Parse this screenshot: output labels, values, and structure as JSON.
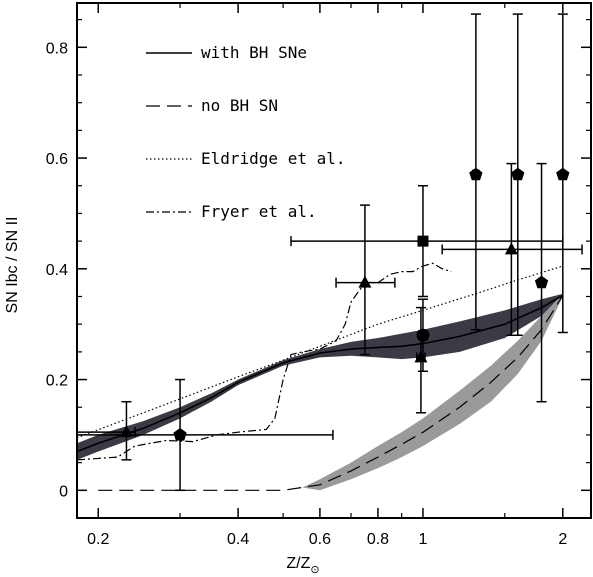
{
  "chart_data": {
    "type": "scatter",
    "xscale": "log",
    "xlim": [
      0.18,
      2.3
    ],
    "ylim": [
      -0.05,
      0.88
    ],
    "xlabel": "Z/Z",
    "xlabel_sub": "⊙",
    "ylabel": "SN Ibc / SN II",
    "x_ticks": [
      {
        "v": 0.2,
        "label": "0.2"
      },
      {
        "v": 0.4,
        "label": "0.4"
      },
      {
        "v": 0.6,
        "label": "0.6"
      },
      {
        "v": 0.8,
        "label": "0.8"
      },
      {
        "v": 1.0,
        "label": "1"
      },
      {
        "v": 2.0,
        "label": "2"
      }
    ],
    "x_minor_ticks": [
      0.3,
      0.5,
      0.7,
      0.9,
      1.5
    ],
    "y_ticks": [
      {
        "v": 0,
        "label": "0"
      },
      {
        "v": 0.2,
        "label": "0.2"
      },
      {
        "v": 0.4,
        "label": "0.4"
      },
      {
        "v": 0.6,
        "label": "0.6"
      },
      {
        "v": 0.8,
        "label": "0.8"
      }
    ],
    "y_minor_step": 0.05,
    "legend_position": "top-left",
    "legend": [
      {
        "label": "with BH SNe",
        "style": "solid"
      },
      {
        "label": "no BH SN",
        "style": "long-dash"
      },
      {
        "label": "Eldridge et al.",
        "style": "dotted"
      },
      {
        "label": "Fryer et al.",
        "style": "dash-dot"
      }
    ],
    "bands": [
      {
        "name": "with BH SNe",
        "fill": "#3b3b46",
        "upper": [
          [
            0.18,
            0.085
          ],
          [
            0.2,
            0.1
          ],
          [
            0.25,
            0.125
          ],
          [
            0.3,
            0.15
          ],
          [
            0.35,
            0.175
          ],
          [
            0.4,
            0.2
          ],
          [
            0.5,
            0.235
          ],
          [
            0.6,
            0.255
          ],
          [
            0.7,
            0.268
          ],
          [
            0.8,
            0.275
          ],
          [
            0.9,
            0.283
          ],
          [
            1.0,
            0.29
          ],
          [
            1.2,
            0.305
          ],
          [
            1.5,
            0.325
          ],
          [
            1.8,
            0.345
          ],
          [
            2.0,
            0.355
          ]
        ],
        "lower": [
          [
            0.18,
            0.055
          ],
          [
            0.2,
            0.07
          ],
          [
            0.25,
            0.1
          ],
          [
            0.3,
            0.13
          ],
          [
            0.35,
            0.16
          ],
          [
            0.4,
            0.19
          ],
          [
            0.5,
            0.225
          ],
          [
            0.6,
            0.24
          ],
          [
            0.7,
            0.243
          ],
          [
            0.8,
            0.24
          ],
          [
            0.9,
            0.237
          ],
          [
            1.0,
            0.24
          ],
          [
            1.2,
            0.25
          ],
          [
            1.5,
            0.275
          ],
          [
            1.8,
            0.315
          ],
          [
            2.0,
            0.35
          ]
        ]
      },
      {
        "name": "no BH SN",
        "fill": "#9a9a9a",
        "upper": [
          [
            0.55,
            0.005
          ],
          [
            0.6,
            0.02
          ],
          [
            0.7,
            0.05
          ],
          [
            0.8,
            0.08
          ],
          [
            0.9,
            0.105
          ],
          [
            1.0,
            0.13
          ],
          [
            1.2,
            0.18
          ],
          [
            1.4,
            0.225
          ],
          [
            1.6,
            0.27
          ],
          [
            1.8,
            0.315
          ],
          [
            2.0,
            0.355
          ]
        ],
        "lower": [
          [
            0.6,
            0.0
          ],
          [
            0.7,
            0.02
          ],
          [
            0.8,
            0.04
          ],
          [
            0.9,
            0.06
          ],
          [
            1.0,
            0.08
          ],
          [
            1.2,
            0.12
          ],
          [
            1.4,
            0.16
          ],
          [
            1.6,
            0.21
          ],
          [
            1.8,
            0.27
          ],
          [
            2.0,
            0.35
          ]
        ]
      }
    ],
    "series": [
      {
        "name": "with BH SNe",
        "style": "solid",
        "points": [
          [
            0.18,
            0.07
          ],
          [
            0.2,
            0.085
          ],
          [
            0.25,
            0.112
          ],
          [
            0.3,
            0.14
          ],
          [
            0.35,
            0.167
          ],
          [
            0.4,
            0.195
          ],
          [
            0.5,
            0.23
          ],
          [
            0.6,
            0.248
          ],
          [
            0.7,
            0.255
          ],
          [
            0.8,
            0.258
          ],
          [
            0.9,
            0.26
          ],
          [
            1.0,
            0.265
          ],
          [
            1.2,
            0.278
          ],
          [
            1.5,
            0.3
          ],
          [
            1.8,
            0.33
          ],
          [
            2.0,
            0.352
          ]
        ]
      },
      {
        "name": "no BH SN",
        "style": "long-dash",
        "points": [
          [
            0.2,
            0.0
          ],
          [
            0.5,
            0.0
          ],
          [
            0.6,
            0.01
          ],
          [
            0.7,
            0.035
          ],
          [
            0.8,
            0.06
          ],
          [
            0.9,
            0.083
          ],
          [
            1.0,
            0.105
          ],
          [
            1.2,
            0.15
          ],
          [
            1.4,
            0.195
          ],
          [
            1.6,
            0.24
          ],
          [
            1.8,
            0.29
          ],
          [
            2.0,
            0.352
          ]
        ]
      },
      {
        "name": "Eldridge et al.",
        "style": "dotted",
        "points": [
          [
            0.18,
            0.095
          ],
          [
            0.25,
            0.14
          ],
          [
            0.3,
            0.165
          ],
          [
            0.4,
            0.205
          ],
          [
            0.5,
            0.235
          ],
          [
            0.6,
            0.26
          ],
          [
            0.8,
            0.3
          ],
          [
            1.0,
            0.325
          ],
          [
            1.3,
            0.355
          ],
          [
            1.6,
            0.38
          ],
          [
            2.0,
            0.405
          ]
        ]
      },
      {
        "name": "Fryer et al.",
        "style": "dash-dot",
        "points": [
          [
            0.18,
            0.055
          ],
          [
            0.22,
            0.06
          ],
          [
            0.24,
            0.08
          ],
          [
            0.28,
            0.09
          ],
          [
            0.32,
            0.088
          ],
          [
            0.36,
            0.1
          ],
          [
            0.4,
            0.105
          ],
          [
            0.46,
            0.11
          ],
          [
            0.48,
            0.13
          ],
          [
            0.5,
            0.2
          ],
          [
            0.52,
            0.245
          ],
          [
            0.55,
            0.25
          ],
          [
            0.6,
            0.255
          ],
          [
            0.65,
            0.27
          ],
          [
            0.68,
            0.3
          ],
          [
            0.7,
            0.34
          ],
          [
            0.75,
            0.375
          ],
          [
            0.8,
            0.375
          ],
          [
            0.85,
            0.39
          ],
          [
            0.9,
            0.395
          ],
          [
            0.95,
            0.395
          ],
          [
            1.0,
            0.405
          ],
          [
            1.05,
            0.41
          ],
          [
            1.1,
            0.4
          ],
          [
            1.15,
            0.395
          ]
        ]
      }
    ],
    "data_points": [
      {
        "marker": "triangle",
        "x": 0.23,
        "y": 0.105,
        "xerr": [
          0.18,
          0.24
        ],
        "yerr": [
          0.055,
          0.16
        ]
      },
      {
        "marker": "pentagon",
        "x": 0.3,
        "y": 0.1,
        "xerr": [
          0.18,
          0.64
        ],
        "yerr": [
          0.0,
          0.2
        ]
      },
      {
        "marker": "triangle",
        "x": 0.75,
        "y": 0.375,
        "xerr": [
          0.65,
          0.87
        ],
        "yerr": [
          0.245,
          0.515
        ]
      },
      {
        "marker": "triangle",
        "x": 0.99,
        "y": 0.24,
        "xerr": [
          0.97,
          1.01
        ],
        "yerr": [
          0.14,
          0.33
        ]
      },
      {
        "marker": "circle",
        "x": 1.0,
        "y": 0.28,
        "xerr": [
          0.98,
          1.02
        ],
        "yerr": [
          0.215,
          0.345
        ]
      },
      {
        "marker": "square",
        "x": 1.0,
        "y": 0.45,
        "xerr": [
          0.52,
          2.0
        ],
        "yerr": [
          0.35,
          0.55
        ]
      },
      {
        "marker": "triangle",
        "x": 1.55,
        "y": 0.435,
        "xerr": [
          1.1,
          2.2
        ],
        "yerr": [
          0.28,
          0.59
        ]
      },
      {
        "marker": "pentagon",
        "x": 1.3,
        "y": 0.57,
        "xerr": [
          1.28,
          1.32
        ],
        "yerr": [
          0.29,
          0.86
        ]
      },
      {
        "marker": "pentagon",
        "x": 1.6,
        "y": 0.57,
        "xerr": [
          1.58,
          1.62
        ],
        "yerr": [
          0.28,
          0.86
        ]
      },
      {
        "marker": "pentagon",
        "x": 2.0,
        "y": 0.57,
        "xerr": [
          1.98,
          2.02
        ],
        "yerr": [
          0.285,
          0.86
        ]
      },
      {
        "marker": "pentagon",
        "x": 1.8,
        "y": 0.375,
        "xerr": [
          1.78,
          1.82
        ],
        "yerr": [
          0.16,
          0.59
        ]
      }
    ]
  }
}
